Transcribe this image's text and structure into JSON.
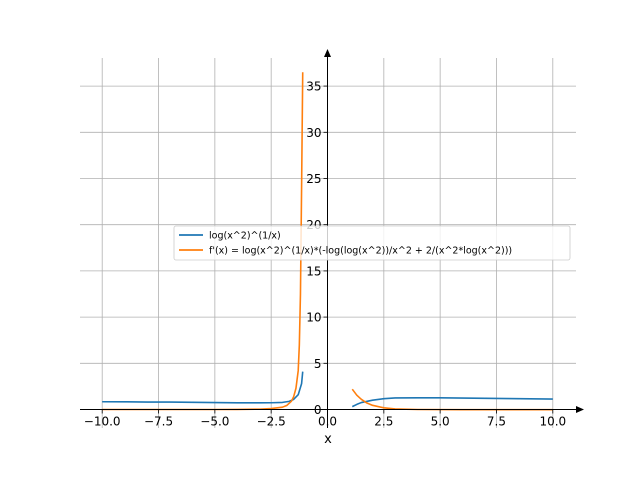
{
  "chart_data": {
    "type": "line",
    "title": "",
    "xlabel": "x",
    "ylabel": "",
    "xlim": [
      -11,
      11.5
    ],
    "ylim": [
      -0.5,
      39
    ],
    "grid": true,
    "legend_position": "center",
    "x_ticks": [
      -10.0,
      -7.5,
      -5.0,
      -2.5,
      0.0,
      2.5,
      5.0,
      7.5,
      10.0
    ],
    "x_tick_labels": [
      "−10.0",
      "−7.5",
      "−5.0",
      "−2.5",
      "0.0",
      "2.5",
      "5.0",
      "7.5",
      "10.0"
    ],
    "y_ticks": [
      0,
      5,
      10,
      15,
      20,
      25,
      30,
      35
    ],
    "y_tick_labels": [
      "0",
      "5",
      "10",
      "15",
      "20",
      "25",
      "30",
      "35"
    ],
    "series": [
      {
        "name": "log(x^2)^(1/x)",
        "color": "#1f77b4",
        "segments": [
          [
            [
              -10.0,
              0.84
            ],
            [
              -9.0,
              0.83
            ],
            [
              -8.0,
              0.81
            ],
            [
              -7.0,
              0.8
            ],
            [
              -6.0,
              0.78
            ],
            [
              -5.0,
              0.75
            ],
            [
              -4.0,
              0.72
            ],
            [
              -3.0,
              0.72
            ],
            [
              -2.5,
              0.73
            ],
            [
              -2.0,
              0.77
            ],
            [
              -1.7,
              0.88
            ],
            [
              -1.5,
              1.1
            ],
            [
              -1.3,
              1.6
            ],
            [
              -1.15,
              2.8
            ],
            [
              -1.1,
              4.1
            ]
          ],
          [
            [
              1.1,
              0.31
            ],
            [
              1.3,
              0.55
            ],
            [
              1.5,
              0.75
            ],
            [
              2.0,
              1.01
            ],
            [
              2.5,
              1.17
            ],
            [
              3.0,
              1.25
            ],
            [
              4.0,
              1.27
            ],
            [
              5.0,
              1.26
            ],
            [
              6.0,
              1.24
            ],
            [
              7.0,
              1.21
            ],
            [
              8.0,
              1.18
            ],
            [
              9.0,
              1.16
            ],
            [
              10.0,
              1.13
            ]
          ]
        ]
      },
      {
        "name": "f'(x) = log(x^2)^(1/x)*(-log(log(x^2))/x^2 + 2/(x^2*log(x^2)))",
        "color": "#ff7f0e",
        "segments": [
          [
            [
              -10.0,
              0.0
            ],
            [
              -7.0,
              0.0
            ],
            [
              -5.0,
              0.0
            ],
            [
              -4.0,
              0.01
            ],
            [
              -3.0,
              0.04
            ],
            [
              -2.5,
              0.1
            ],
            [
              -2.0,
              0.25
            ],
            [
              -1.8,
              0.45
            ],
            [
              -1.6,
              0.9
            ],
            [
              -1.5,
              1.4
            ],
            [
              -1.4,
              2.3
            ],
            [
              -1.3,
              4.2
            ],
            [
              -1.25,
              7.0
            ],
            [
              -1.2,
              12.5
            ],
            [
              -1.15,
              24.0
            ],
            [
              -1.1,
              36.5
            ]
          ],
          [
            [
              1.1,
              2.2
            ],
            [
              1.3,
              1.55
            ],
            [
              1.5,
              1.1
            ],
            [
              1.75,
              0.7
            ],
            [
              2.0,
              0.45
            ],
            [
              2.5,
              0.18
            ],
            [
              3.0,
              0.06
            ],
            [
              4.0,
              0.0
            ],
            [
              6.0,
              -0.02
            ],
            [
              8.0,
              -0.02
            ],
            [
              10.0,
              -0.02
            ]
          ]
        ]
      }
    ]
  }
}
